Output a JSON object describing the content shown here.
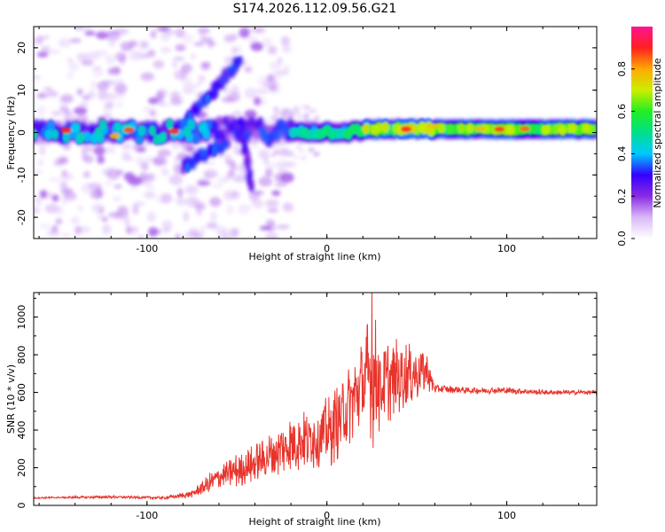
{
  "title": "S174.2026.112.09.56.G21",
  "colors": {
    "snr_line": "#e8332b",
    "background": "#ffffff",
    "axis": "#000000",
    "colormap": [
      "#ffffff",
      "#d9b8f7",
      "#8a2be2",
      "#3300ff",
      "#00c8ff",
      "#00e08a",
      "#22ee22",
      "#ccee00",
      "#ffaa00",
      "#ff2020",
      "#ff1493"
    ]
  },
  "chart_data": [
    {
      "type": "heatmap",
      "name": "spectrogram",
      "xlabel": "Height of straight line (km)",
      "ylabel": "Frequency (Hz)",
      "xlim": [
        -163,
        150
      ],
      "ylim": [
        -25,
        25
      ],
      "xticks": [
        -100,
        0,
        100
      ],
      "xtick_labels": [
        "-100",
        "0",
        "100"
      ],
      "yticks": [
        -20,
        -10,
        0,
        10,
        20
      ],
      "ytick_labels": [
        "-20",
        "-10",
        "0",
        "10",
        "20"
      ],
      "colorbar": {
        "label": "Normalized spectral amplitude",
        "range": [
          0,
          1
        ],
        "ticks": [
          0.0,
          0.2,
          0.4,
          0.6,
          0.8
        ],
        "tick_labels": [
          "0.0",
          "0.2",
          "0.4",
          "0.6",
          "0.8"
        ]
      },
      "features": {
        "main_band_center_hz": 0,
        "main_band_range_km": [
          -163,
          150
        ],
        "rising_arc": {
          "from": [
            -80,
            2
          ],
          "to": [
            -48,
            17
          ]
        },
        "falling_arc": {
          "from": [
            -80,
            -8
          ],
          "to": [
            -55,
            -2
          ]
        },
        "lower_hook": {
          "from": [
            -48,
            3
          ],
          "to": [
            -42,
            -13
          ]
        }
      }
    },
    {
      "type": "line",
      "name": "snr",
      "xlabel": "Height of straight line (km)",
      "ylabel": "SNR (10 * v/v)",
      "xlim": [
        -163,
        150
      ],
      "ylim": [
        0,
        1130
      ],
      "xticks": [
        -100,
        0,
        100
      ],
      "xtick_labels": [
        "-100",
        "0",
        "100"
      ],
      "yticks": [
        0,
        200,
        400,
        600,
        800,
        1000
      ],
      "ytick_labels": [
        "0",
        "200",
        "400",
        "600",
        "800",
        "1000"
      ],
      "series": [
        {
          "name": "SNR",
          "envelope_x": [
            -163,
            -120,
            -90,
            -75,
            -60,
            -40,
            -20,
            0,
            10,
            20,
            25,
            30,
            45,
            55,
            60,
            80,
            100,
            120,
            150
          ],
          "envelope_y": [
            40,
            45,
            40,
            60,
            150,
            220,
            330,
            380,
            500,
            640,
            700,
            640,
            700,
            720,
            620,
            610,
            610,
            600,
            600
          ],
          "amplitude": [
            5,
            8,
            8,
            20,
            80,
            110,
            170,
            200,
            240,
            260,
            420,
            250,
            200,
            130,
            25,
            18,
            20,
            15,
            12
          ],
          "peak": {
            "x": 25,
            "y": 1130
          }
        }
      ]
    }
  ]
}
